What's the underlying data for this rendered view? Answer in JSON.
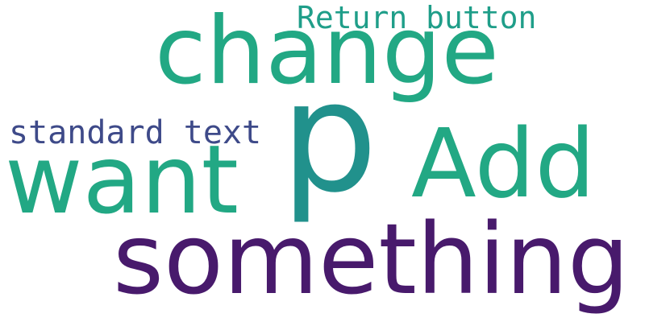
{
  "words": [
    {
      "text": "Return button",
      "color": "#1f9e89"
    },
    {
      "text": "change",
      "color": "#22a884"
    },
    {
      "text": "standard text",
      "color": "#3e4a89"
    },
    {
      "text": "p",
      "color": "#21918c"
    },
    {
      "text": "Add",
      "color": "#22a884"
    },
    {
      "text": "want",
      "color": "#22a884"
    },
    {
      "text": "something",
      "color": "#481a6c"
    }
  ],
  "background": "#ffffff"
}
